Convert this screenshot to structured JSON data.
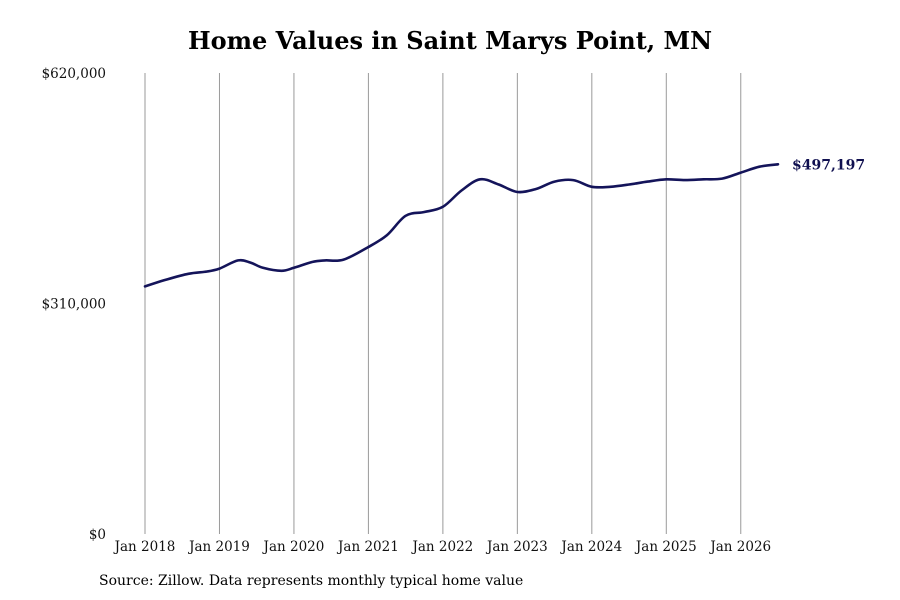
{
  "title": "Home Values in Saint Marys Point, MN",
  "source": "Source: Zillow. Data represents monthly typical home value",
  "chart_data": {
    "type": "line",
    "title": "Home Values in Saint Marys Point, MN",
    "xlabel": "",
    "ylabel": "",
    "ylim": [
      0,
      620000
    ],
    "y_ticks": [
      0,
      310000,
      620000
    ],
    "y_tick_labels": [
      "$0",
      "$310,000",
      "$620,000"
    ],
    "x_range": [
      "2018-01",
      "2026-07"
    ],
    "x_ticks": [
      "2018-01",
      "2019-01",
      "2020-01",
      "2021-01",
      "2022-01",
      "2023-01",
      "2024-01",
      "2025-01",
      "2026-01"
    ],
    "x_tick_labels": [
      "Jan 2018",
      "Jan 2019",
      "Jan 2020",
      "Jan 2021",
      "Jan 2022",
      "Jan 2023",
      "Jan 2024",
      "Jan 2025",
      "Jan 2026"
    ],
    "grid": "vertical",
    "line_color": "#14145a",
    "series": [
      {
        "x": [
          "2018-01",
          "2018-04",
          "2018-08",
          "2018-11",
          "2019-01",
          "2019-04",
          "2019-06",
          "2019-08",
          "2019-11",
          "2020-01",
          "2020-04",
          "2020-06",
          "2020-09",
          "2021-01",
          "2021-04",
          "2021-07",
          "2021-10",
          "2022-01",
          "2022-04",
          "2022-07",
          "2022-10",
          "2023-01",
          "2023-04",
          "2023-07",
          "2023-10",
          "2024-01",
          "2024-04",
          "2024-07",
          "2024-10",
          "2025-01",
          "2025-04",
          "2025-07",
          "2025-10",
          "2026-01",
          "2026-04",
          "2026-07"
        ],
        "values": [
          333000,
          341000,
          350000,
          353000,
          357000,
          368000,
          365000,
          358000,
          354000,
          358000,
          366000,
          368000,
          369000,
          386000,
          402000,
          428000,
          433000,
          440000,
          462000,
          477000,
          470000,
          460000,
          464000,
          474000,
          476000,
          467000,
          467000,
          470000,
          474000,
          477000,
          476000,
          477000,
          478000,
          486000,
          494000,
          497197
        ]
      }
    ],
    "annotations": [
      {
        "x": "2026-07",
        "value": 497197,
        "text": "$497,197"
      }
    ]
  }
}
